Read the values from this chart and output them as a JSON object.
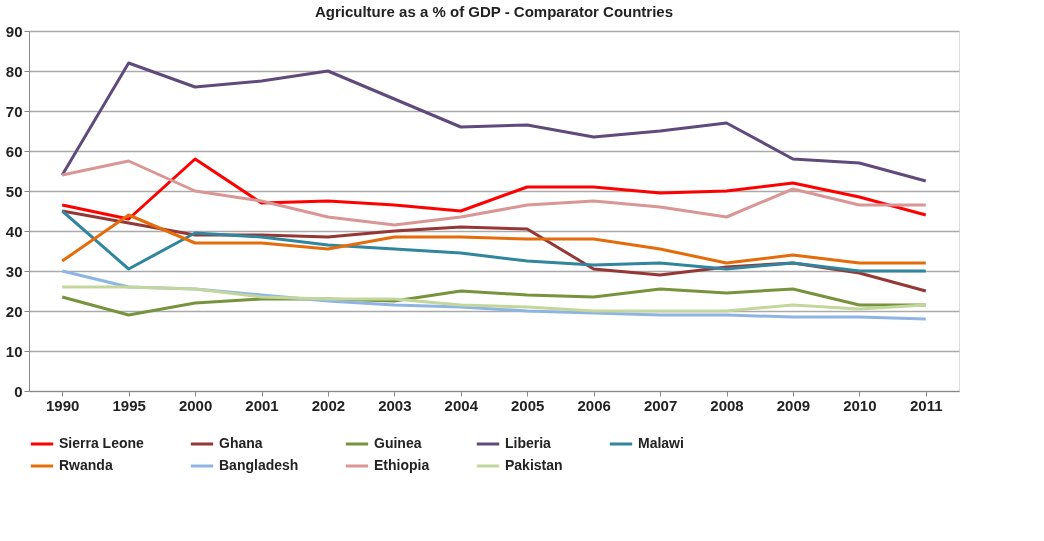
{
  "chart_data": {
    "type": "line",
    "title": "Agriculture as a % of GDP - Comparator Countries",
    "categories": [
      "1990",
      "1995",
      "2000",
      "2001",
      "2002",
      "2003",
      "2004",
      "2005",
      "2006",
      "2007",
      "2008",
      "2009",
      "2010",
      "2011"
    ],
    "series": [
      {
        "name": "Sierra Leone",
        "color": "#ff0000",
        "values": [
          46.5,
          43,
          58,
          47,
          47.5,
          46.5,
          45,
          51,
          51,
          49.5,
          50,
          52,
          48.5,
          44
        ]
      },
      {
        "name": "Ghana",
        "color": "#953735",
        "values": [
          45,
          42,
          39,
          39,
          38.5,
          40,
          41,
          40.5,
          30.5,
          29,
          31,
          32,
          29.5,
          25
        ]
      },
      {
        "name": "Guinea",
        "color": "#77933c",
        "values": [
          23.5,
          19,
          22,
          23,
          23,
          22.5,
          25,
          24,
          23.5,
          25.5,
          24.5,
          25.5,
          21.5,
          21.5
        ]
      },
      {
        "name": "Liberia",
        "color": "#604a7b",
        "values": [
          54,
          82,
          76,
          77.5,
          80,
          73,
          66,
          66.5,
          63.5,
          65,
          67,
          58,
          57,
          52.5
        ]
      },
      {
        "name": "Malawi",
        "color": "#31859c",
        "values": [
          45,
          30.5,
          39.5,
          38.5,
          36.5,
          35.5,
          34.5,
          32.5,
          31.5,
          32,
          30.5,
          32,
          30,
          30
        ]
      },
      {
        "name": "Rwanda",
        "color": "#e46c0a",
        "values": [
          32.5,
          44,
          37,
          37,
          35.5,
          38.5,
          38.5,
          38,
          38,
          35.5,
          32,
          34,
          32,
          32
        ]
      },
      {
        "name": "Bangladesh",
        "color": "#8eb4e3",
        "values": [
          30,
          26,
          25.5,
          24,
          22.5,
          21.5,
          21,
          20,
          19.5,
          19,
          19,
          18.5,
          18.5,
          18
        ]
      },
      {
        "name": "Ethiopia",
        "color": "#d99694",
        "values": [
          54,
          57.5,
          50,
          47.5,
          43.5,
          41.5,
          43.5,
          46.5,
          47.5,
          46,
          43.5,
          50.5,
          46.5,
          46.5
        ]
      },
      {
        "name": "Pakistan",
        "color": "#c3d69b",
        "values": [
          26,
          26,
          25.5,
          23.5,
          23,
          23,
          21.5,
          21,
          20,
          20,
          20,
          21.5,
          20.5,
          21.5
        ]
      }
    ],
    "ylim": [
      0,
      90
    ],
    "yticks": [
      0,
      10,
      20,
      30,
      40,
      50,
      60,
      70,
      80,
      90
    ],
    "grid": "y",
    "legend": "bottom",
    "marker": "none",
    "line_style": "solid"
  }
}
